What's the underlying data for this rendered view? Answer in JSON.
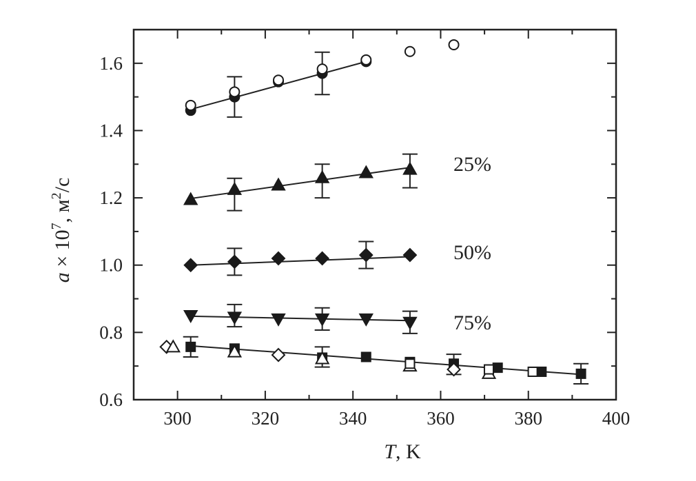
{
  "chart_data": {
    "type": "scatter",
    "title": "",
    "xlabel": {
      "italic": "T",
      "rest": ", K"
    },
    "ylabel": {
      "italic": "a",
      "rest": " × 10",
      "sup": "7",
      "after": ",  м",
      "sup2": "2",
      "tail": "/с"
    },
    "xlim": [
      290,
      400
    ],
    "ylim": [
      0.6,
      1.7
    ],
    "x_ticks": [
      300,
      320,
      340,
      360,
      380,
      400
    ],
    "y_ticks": [
      0.6,
      0.8,
      1.0,
      1.2,
      1.4,
      1.6
    ],
    "x_tick_labels": [
      "300",
      "320",
      "340",
      "360",
      "380",
      "400"
    ],
    "y_tick_labels": [
      "0.6",
      "0.8",
      "1.0",
      "1.2",
      "1.4",
      "1.6"
    ],
    "grid": false,
    "legend": "none",
    "annotations": [
      {
        "text": "25%",
        "x": 366,
        "y": 1.295
      },
      {
        "text": "50%",
        "x": 366,
        "y": 1.035
      },
      {
        "text": "75%",
        "x": 366,
        "y": 0.825
      }
    ],
    "series": [
      {
        "marker": "circle-filled",
        "points": [
          [
            303,
            1.46
          ],
          [
            313,
            1.5
          ],
          [
            323,
            1.545
          ],
          [
            333,
            1.57
          ],
          [
            343,
            1.605
          ]
        ],
        "errors": [
          [
            313,
            1.5,
            0.06
          ],
          [
            333,
            1.57,
            0.063
          ]
        ],
        "fit": [
          [
            303,
            1.463
          ],
          [
            343,
            1.605
          ]
        ]
      },
      {
        "marker": "circle-open",
        "points": [
          [
            303,
            1.475
          ],
          [
            313,
            1.515
          ],
          [
            323,
            1.55
          ],
          [
            333,
            1.583
          ],
          [
            343,
            1.61
          ],
          [
            353,
            1.635
          ],
          [
            363,
            1.655
          ]
        ]
      },
      {
        "marker": "triangle-up-filled",
        "points": [
          [
            303,
            1.195
          ],
          [
            313,
            1.225
          ],
          [
            323,
            1.238
          ],
          [
            333,
            1.26
          ],
          [
            343,
            1.275
          ],
          [
            353,
            1.285
          ]
        ],
        "errors": [
          [
            313,
            1.21,
            0.048
          ],
          [
            333,
            1.25,
            0.05
          ],
          [
            353,
            1.28,
            0.05
          ]
        ],
        "fit": [
          [
            303,
            1.198
          ],
          [
            353,
            1.29
          ]
        ]
      },
      {
        "marker": "diamond-filled",
        "points": [
          [
            303,
            1.0
          ],
          [
            313,
            1.01
          ],
          [
            323,
            1.02
          ],
          [
            333,
            1.02
          ],
          [
            343,
            1.03
          ],
          [
            353,
            1.03
          ]
        ],
        "errors": [
          [
            313,
            1.01,
            0.04
          ],
          [
            343,
            1.03,
            0.04
          ]
        ],
        "fit": [
          [
            303,
            1.0
          ],
          [
            353,
            1.025
          ]
        ]
      },
      {
        "marker": "triangle-down-filled",
        "points": [
          [
            303,
            0.85
          ],
          [
            313,
            0.845
          ],
          [
            323,
            0.84
          ],
          [
            333,
            0.84
          ],
          [
            343,
            0.84
          ],
          [
            353,
            0.83
          ]
        ],
        "errors": [
          [
            313,
            0.85,
            0.033
          ],
          [
            333,
            0.84,
            0.033
          ],
          [
            353,
            0.83,
            0.033
          ]
        ],
        "fit": [
          [
            303,
            0.848
          ],
          [
            353,
            0.835
          ]
        ]
      },
      {
        "marker": "square-filled",
        "points": [
          [
            303,
            0.757
          ],
          [
            313,
            0.752
          ],
          [
            333,
            0.725
          ],
          [
            343,
            0.727
          ],
          [
            353,
            0.712
          ],
          [
            363,
            0.707
          ],
          [
            373,
            0.695
          ],
          [
            383,
            0.683
          ],
          [
            392,
            0.677
          ]
        ],
        "errors": [
          [
            303,
            0.757,
            0.03
          ],
          [
            333,
            0.727,
            0.03
          ],
          [
            363,
            0.705,
            0.03
          ],
          [
            392,
            0.677,
            0.03
          ]
        ],
        "fit": [
          [
            303,
            0.76
          ],
          [
            392,
            0.675
          ]
        ]
      },
      {
        "marker": "diamond-open",
        "points": [
          [
            297.5,
            0.757
          ],
          [
            323,
            0.733
          ],
          [
            363,
            0.69
          ]
        ]
      },
      {
        "marker": "triangle-up-open",
        "points": [
          [
            299,
            0.757
          ],
          [
            313,
            0.742
          ],
          [
            333,
            0.722
          ],
          [
            353,
            0.7
          ],
          [
            371,
            0.678
          ]
        ]
      },
      {
        "marker": "square-open",
        "points": [
          [
            353,
            0.707
          ],
          [
            371,
            0.69
          ],
          [
            381,
            0.683
          ]
        ]
      }
    ]
  }
}
